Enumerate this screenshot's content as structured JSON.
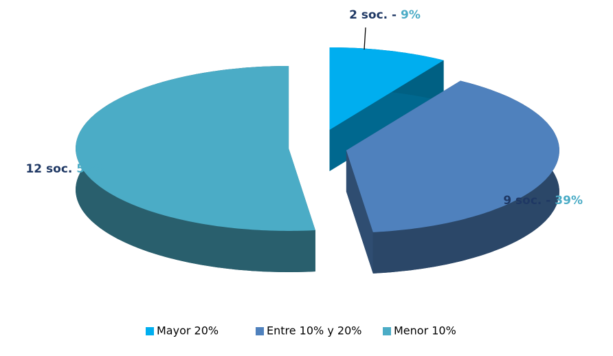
{
  "chart_data": {
    "type": "pie",
    "categories": [
      "Mayor 20%",
      "Entre 10% y 20%",
      "Menor 10%"
    ],
    "values": [
      9,
      39,
      52
    ],
    "value_labels": [
      "9%",
      "39%",
      "52%"
    ],
    "counts": [
      2,
      9,
      12
    ],
    "count_labels": [
      "2 soc.  -",
      "9 soc. -",
      "12 soc."
    ],
    "colors": [
      "#00aeef",
      "#4f81bd",
      "#4bacc6"
    ],
    "count_label_color": "#1f3864",
    "value_label_color": "#4bacc6",
    "legend": "bottom",
    "three_d": true,
    "exploded": true
  }
}
